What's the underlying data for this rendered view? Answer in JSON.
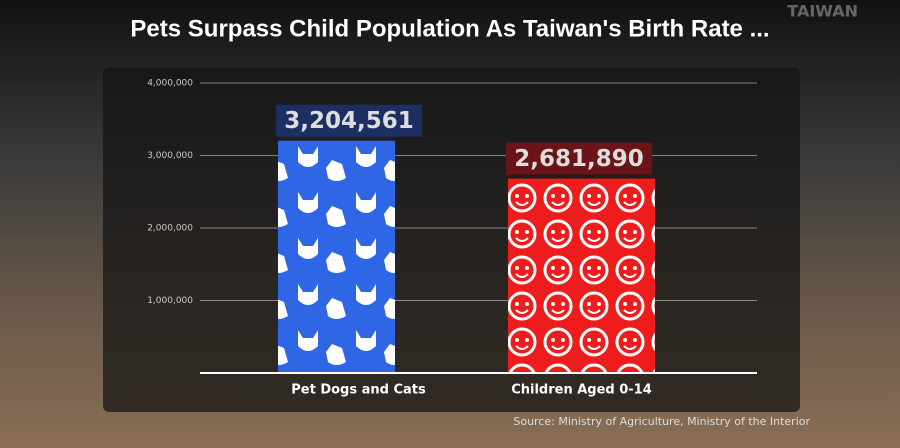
{
  "chart_data": {
    "type": "bar",
    "title": "Pets Surpass Child Population As Taiwan's Birth Rate ...",
    "watermark": "TAIWAN",
    "categories": [
      "Pet Dogs and Cats",
      "Children Aged 0-14"
    ],
    "values": [
      3204561,
      2681890
    ],
    "value_labels": [
      "3,204,561",
      "2,681,890"
    ],
    "colors": [
      "#2f66e6",
      "#ee1c1c"
    ],
    "ylim": [
      0,
      4000000
    ],
    "yticks": [
      {
        "value": 1000000,
        "label": "1,000,000"
      },
      {
        "value": 2000000,
        "label": "2,000,000"
      },
      {
        "value": 3000000,
        "label": "3,000,000"
      },
      {
        "value": 4000000,
        "label": "4,000,000"
      }
    ],
    "grid": true,
    "source": "Source: Ministry of Agriculture, Ministry of the Interior"
  }
}
